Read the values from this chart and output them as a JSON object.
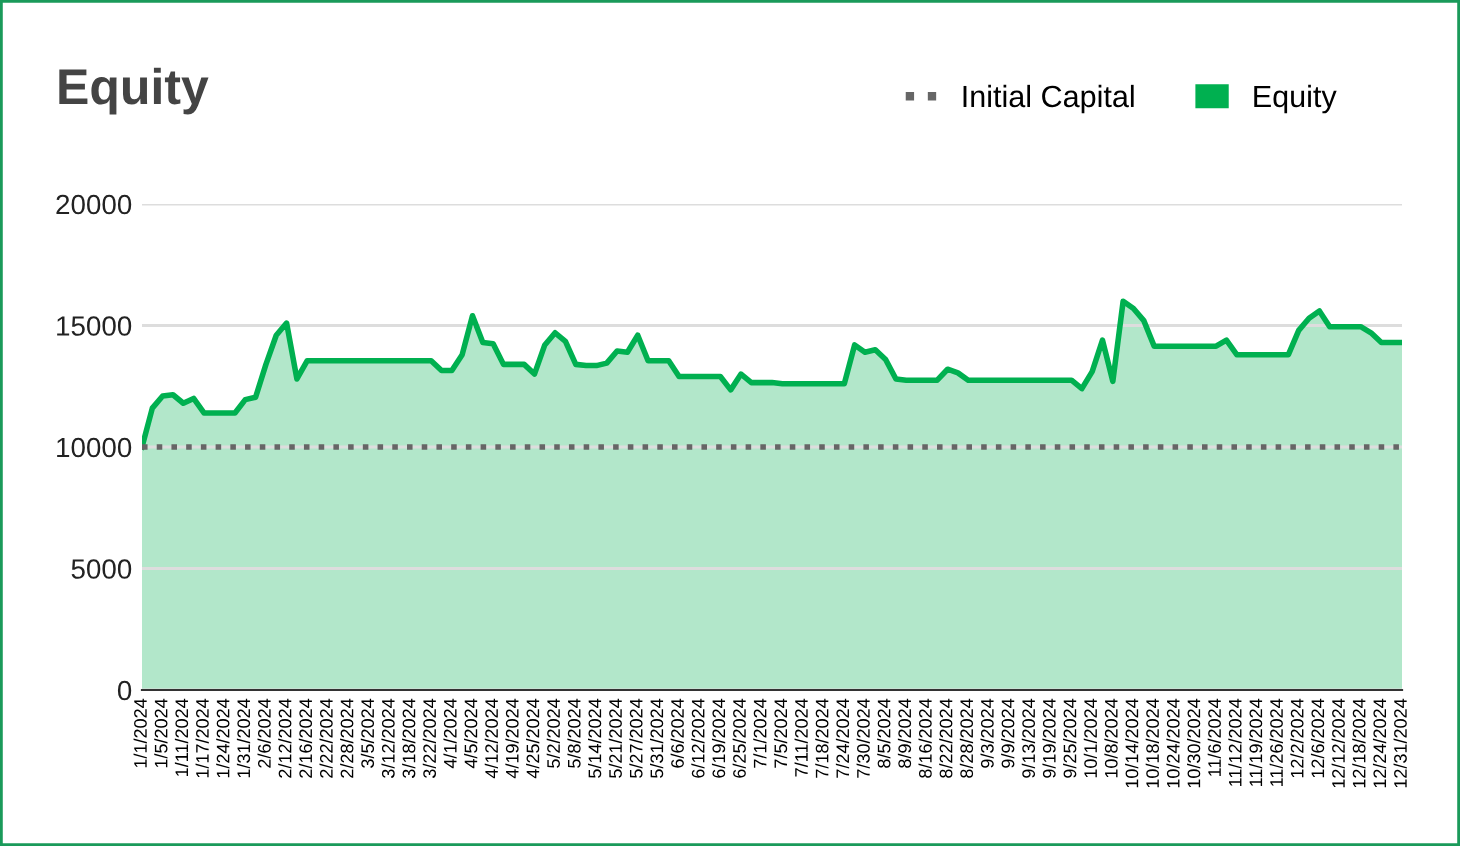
{
  "chart_data": {
    "type": "area",
    "title": "Equity",
    "categories": [
      "1/1/2024",
      null,
      "1/5/2024",
      null,
      "1/11/2024",
      null,
      "1/17/2024",
      null,
      "1/24/2024",
      null,
      "1/31/2024",
      null,
      "2/6/2024",
      null,
      "2/12/2024",
      null,
      "2/16/2024",
      null,
      "2/22/2024",
      null,
      "2/28/2024",
      null,
      "3/5/2024",
      null,
      "3/12/2024",
      null,
      "3/18/2024",
      null,
      "3/22/2024",
      null,
      "4/1/2024",
      null,
      "4/5/2024",
      null,
      "4/12/2024",
      null,
      "4/19/2024",
      null,
      "4/25/2024",
      null,
      "5/2/2024",
      null,
      "5/8/2024",
      null,
      "5/14/2024",
      null,
      "5/21/2024",
      null,
      "5/27/2024",
      null,
      "5/31/2024",
      null,
      "6/6/2024",
      null,
      "6/12/2024",
      null,
      "6/19/2024",
      null,
      "6/25/2024",
      null,
      "7/1/2024",
      null,
      "7/5/2024",
      null,
      "7/11/2024",
      null,
      "7/18/2024",
      null,
      "7/24/2024",
      null,
      "7/30/2024",
      null,
      "8/5/2024",
      null,
      "8/9/2024",
      null,
      "8/16/2024",
      null,
      "8/22/2024",
      null,
      "8/28/2024",
      null,
      "9/3/2024",
      null,
      "9/9/2024",
      null,
      "9/13/2024",
      null,
      "9/19/2024",
      null,
      "9/25/2024",
      null,
      "10/1/2024",
      null,
      "10/8/2024",
      null,
      "10/14/2024",
      null,
      "10/18/2024",
      null,
      "10/24/2024",
      null,
      "10/30/2024",
      null,
      "11/6/2024",
      null,
      "11/12/2024",
      null,
      "11/19/2024",
      null,
      "11/26/2024",
      null,
      "12/2/2024",
      null,
      "12/6/2024",
      null,
      "12/12/2024",
      null,
      "12/18/2024",
      null,
      "12/24/2024",
      null,
      "12/31/2024"
    ],
    "series": [
      {
        "name": "Equity",
        "color": "#00b050",
        "values": [
          10000,
          11600,
          12100,
          12150,
          11800,
          12000,
          11400,
          11400,
          11400,
          11400,
          11950,
          12050,
          13400,
          14600,
          15100,
          12800,
          13550,
          13550,
          13550,
          13550,
          13550,
          13550,
          13550,
          13550,
          13550,
          13550,
          13550,
          13550,
          13550,
          13150,
          13150,
          13800,
          15400,
          14300,
          14250,
          13400,
          13400,
          13400,
          13000,
          14200,
          14700,
          14350,
          13400,
          13350,
          13350,
          13450,
          13950,
          13900,
          14600,
          13550,
          13550,
          13550,
          12900,
          12900,
          12900,
          12900,
          12900,
          12350,
          13000,
          12650,
          12650,
          12650,
          12600,
          12600,
          12600,
          12600,
          12600,
          12600,
          12600,
          14200,
          13900,
          14000,
          13600,
          12800,
          12750,
          12750,
          12750,
          12750,
          13200,
          13050,
          12750,
          12750,
          12750,
          12750,
          12750,
          12750,
          12750,
          12750,
          12750,
          12750,
          12750,
          12400,
          13100,
          14400,
          12700,
          16000,
          15700,
          15200,
          14150,
          14150,
          14150,
          14150,
          14150,
          14150,
          14150,
          14400,
          13800,
          13800,
          13800,
          13800,
          13800,
          13800,
          14800,
          15300,
          15600,
          14950,
          14950,
          14950,
          14950,
          14700,
          14300,
          14300,
          14300
        ]
      }
    ],
    "ref_lines": [
      {
        "axis": "y",
        "value": 10000,
        "label": "Initial Capital",
        "color": "#666666",
        "line_style": "dotted"
      }
    ],
    "ylim": [
      0,
      20000
    ],
    "yticks": [
      0,
      5000,
      10000,
      15000,
      20000
    ],
    "grid": "y",
    "legend": "top right"
  }
}
